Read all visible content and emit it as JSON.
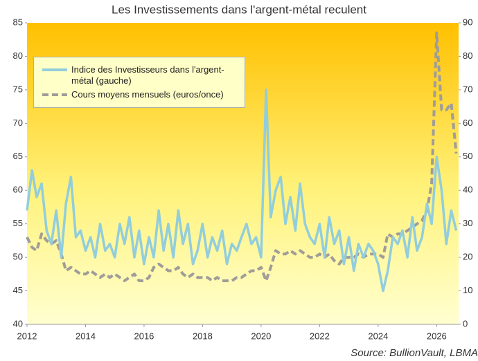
{
  "chart_data": {
    "type": "line",
    "title": "Les Investissements dans l'argent-métal reculent",
    "source": "Source: BullionVault, LBMA",
    "x": [
      2012,
      2012.17,
      2012.33,
      2012.5,
      2012.67,
      2012.83,
      2013,
      2013.17,
      2013.33,
      2013.5,
      2013.67,
      2013.83,
      2014,
      2014.17,
      2014.33,
      2014.5,
      2014.67,
      2014.83,
      2015,
      2015.17,
      2015.33,
      2015.5,
      2015.67,
      2015.83,
      2016,
      2016.17,
      2016.33,
      2016.5,
      2016.67,
      2016.83,
      2017,
      2017.17,
      2017.33,
      2017.5,
      2017.67,
      2017.83,
      2018,
      2018.17,
      2018.33,
      2018.5,
      2018.67,
      2018.83,
      2019,
      2019.17,
      2019.33,
      2019.5,
      2019.67,
      2019.83,
      2020,
      2020.17,
      2020.33,
      2020.5,
      2020.67,
      2020.83,
      2021,
      2021.17,
      2021.33,
      2021.5,
      2021.67,
      2021.83,
      2022,
      2022.17,
      2022.33,
      2022.5,
      2022.67,
      2022.83,
      2023,
      2023.17,
      2023.33,
      2023.5,
      2023.67,
      2023.83,
      2024,
      2024.17,
      2024.33,
      2024.5,
      2024.67,
      2024.83,
      2025,
      2025.17,
      2025.33,
      2025.5,
      2025.67,
      2025.83,
      2026,
      2026.17,
      2026.33,
      2026.5,
      2026.67
    ],
    "series": [
      {
        "name": "Indice des Investisseurs dans l'argent-métal (gauche)",
        "color": "#92cddc",
        "dash": false,
        "values": [
          57,
          63,
          59,
          61,
          54,
          52,
          57,
          50,
          58,
          62,
          53,
          54,
          51,
          53,
          50,
          55,
          51,
          52,
          50,
          55,
          52,
          56,
          50,
          54,
          49,
          53,
          50,
          57,
          51,
          55,
          50,
          57,
          52,
          55,
          49,
          51,
          55,
          50,
          53,
          51,
          54,
          49,
          52,
          51,
          53,
          55,
          52,
          53,
          50,
          75,
          56,
          60,
          62,
          55,
          59,
          54,
          61,
          55,
          53,
          52,
          55,
          50,
          56,
          52,
          54,
          49,
          53,
          48,
          52,
          50,
          52,
          51,
          49,
          45,
          48,
          53,
          52,
          54,
          50,
          56,
          51,
          53,
          58,
          55,
          65,
          60,
          52,
          57,
          54
        ]
      },
      {
        "name": "Cours moyens mensuels (euros/once)",
        "color": "#a09c98",
        "dash": true,
        "axis": "y2",
        "values": [
          26,
          23,
          22,
          27,
          25,
          24,
          25,
          21,
          16,
          17,
          16,
          15,
          15,
          16,
          15,
          14,
          15,
          14,
          15,
          14,
          13,
          14,
          15,
          13,
          13,
          14,
          17,
          18,
          17,
          16,
          16,
          17,
          15,
          14,
          15,
          14,
          14,
          14,
          13,
          14,
          13,
          13,
          13,
          14,
          14,
          15,
          16,
          16,
          17,
          13,
          17,
          22,
          21,
          21,
          22,
          21,
          22,
          21,
          20,
          20,
          21,
          20,
          21,
          19,
          18,
          20,
          20,
          20,
          21,
          20,
          21,
          21,
          21,
          20,
          27,
          26,
          27,
          27,
          28,
          29,
          30,
          31,
          34,
          42,
          87,
          64,
          64,
          66,
          51
        ]
      }
    ],
    "xlim": [
      2012,
      2026.75
    ],
    "xticks": [
      2012,
      2014,
      2016,
      2018,
      2020,
      2022,
      2024,
      2026
    ],
    "ylim": [
      40,
      85
    ],
    "yticks": [
      40,
      45,
      50,
      55,
      60,
      65,
      70,
      75,
      80,
      85
    ],
    "y2lim": [
      0,
      90
    ],
    "y2ticks": [
      0,
      10,
      20,
      30,
      40,
      50,
      60,
      70,
      80,
      90
    ],
    "grid": false,
    "legend": "upper left"
  }
}
